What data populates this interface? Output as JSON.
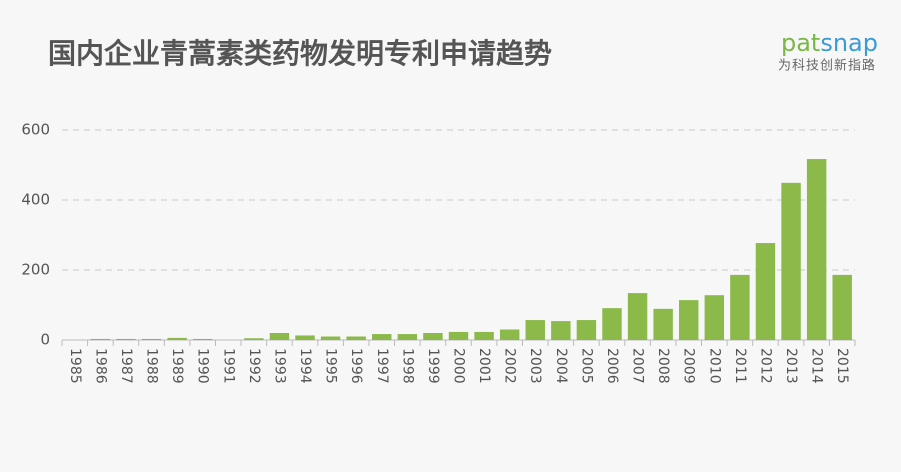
{
  "chart_data": {
    "type": "bar",
    "title": "国内企业青蒿素类药物发明专利申请趋势",
    "brand": {
      "part1": "pat",
      "part2": "snap",
      "tagline": "为科技创新指路"
    },
    "categories": [
      "1985",
      "1986",
      "1987",
      "1988",
      "1989",
      "1990",
      "1991",
      "1992",
      "1993",
      "1994",
      "1995",
      "1996",
      "1997",
      "1998",
      "1999",
      "2000",
      "2001",
      "2002",
      "2003",
      "2004",
      "2005",
      "2006",
      "2007",
      "2008",
      "2009",
      "2010",
      "2011",
      "2012",
      "2013",
      "2014",
      "2015"
    ],
    "values": [
      0,
      3,
      3,
      3,
      6,
      3,
      0,
      5,
      20,
      13,
      10,
      10,
      17,
      17,
      20,
      23,
      23,
      30,
      57,
      54,
      57,
      91,
      134,
      89,
      114,
      128,
      186,
      277,
      449,
      517,
      186
    ],
    "color": "#8bba4b",
    "ylim": [
      0,
      600
    ],
    "yticks": [
      0,
      200,
      400,
      600
    ],
    "grid": true
  }
}
